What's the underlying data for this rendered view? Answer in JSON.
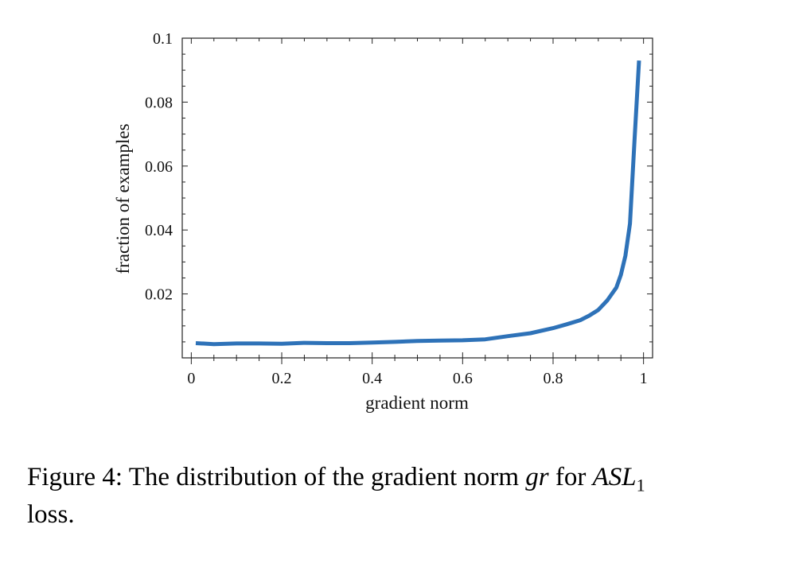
{
  "caption": {
    "prefix": "Figure 4: The distribution of the gradient norm ",
    "math_var": "gr",
    "middle": " for ",
    "math_asl": "ASL",
    "math_sub": "1",
    "suffix": " loss."
  },
  "chart_data": {
    "type": "line",
    "title": "",
    "xlabel": "gradient norm",
    "ylabel": "fraction of examples",
    "xlim": [
      -0.02,
      1.02
    ],
    "ylim": [
      0,
      0.1
    ],
    "xticks": [
      0,
      0.2,
      0.4,
      0.6,
      0.8,
      1
    ],
    "xtick_labels": [
      "0",
      "0.2",
      "0.4",
      "0.6",
      "0.8",
      "1"
    ],
    "yticks": [
      0.02,
      0.04,
      0.06,
      0.08,
      0.1
    ],
    "ytick_labels": [
      "0.02",
      "0.04",
      "0.06",
      "0.08",
      "0.1"
    ],
    "grid": false,
    "legend": false,
    "line_color": "#2e72b8",
    "series": [
      {
        "x": [
          0.01,
          0.05,
          0.1,
          0.15,
          0.2,
          0.25,
          0.3,
          0.35,
          0.4,
          0.45,
          0.5,
          0.55,
          0.6,
          0.65,
          0.7,
          0.75,
          0.8,
          0.83,
          0.86,
          0.88,
          0.9,
          0.92,
          0.94,
          0.95,
          0.96,
          0.97,
          0.98,
          0.99
        ],
        "y": [
          0.0046,
          0.0043,
          0.0045,
          0.0045,
          0.0044,
          0.0047,
          0.0046,
          0.0046,
          0.0048,
          0.005,
          0.0053,
          0.0054,
          0.0055,
          0.0058,
          0.0068,
          0.0077,
          0.0093,
          0.0105,
          0.0118,
          0.0132,
          0.015,
          0.018,
          0.022,
          0.026,
          0.032,
          0.042,
          0.068,
          0.093
        ]
      }
    ]
  }
}
